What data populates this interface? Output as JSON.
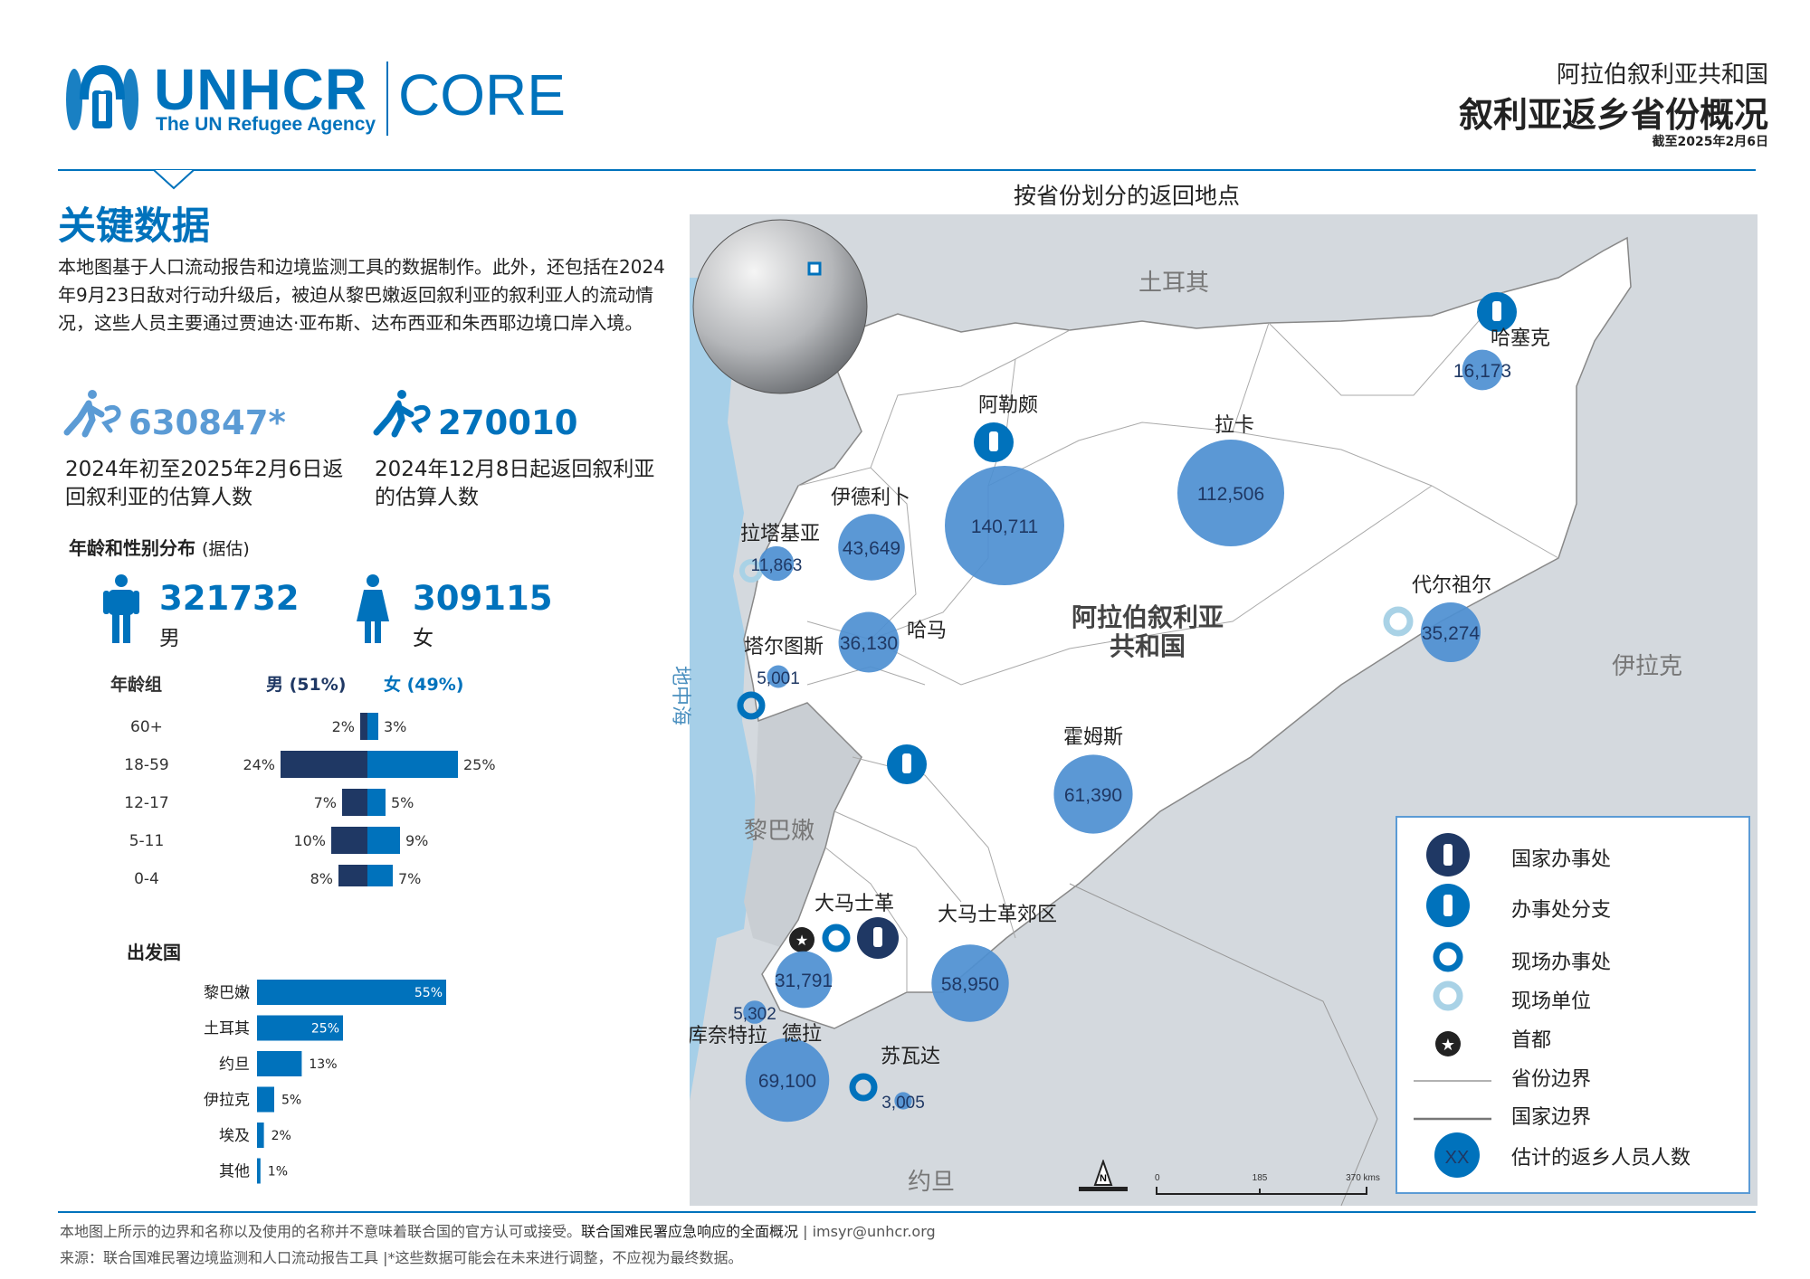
{
  "header": {
    "logo_word": "UNHCR",
    "logo_sub": "The UN Refugee Agency",
    "logo_core": "CORE",
    "country": "阿拉伯叙利亚共和国",
    "title": "叙利亚返乡省份概况",
    "date": "截至2025年2月6日"
  },
  "key_data": {
    "title": "关键数据",
    "intro": "本地图基于人口流动报告和边境监测工具的数据制作。此外，还包括在2024年9月23日敌对行动升级后，被迫从黎巴嫩返回叙利亚的叙利亚人的流动情况，这些人员主要通过贾迪达·亚布斯、达布西亚和朱西耶边境口岸入境。",
    "stat1_value": "630847*",
    "stat1_label": "2024年初至2025年2月6日返回叙利亚的估算人数",
    "stat2_value": "270010",
    "stat2_label": "2024年12月8日起返回叙利亚的估算人数"
  },
  "age_gender": {
    "title": "年龄和性别分布",
    "title_note": "(据估)",
    "male_value": "321732",
    "male_label": "男",
    "female_value": "309115",
    "female_label": "女",
    "age_group_header": "年龄组",
    "male_header": "男 (51%)",
    "female_header": "女 (49%)",
    "rows": [
      {
        "age": "60+",
        "male": 2,
        "female": 3,
        "male_label": "2%",
        "female_label": "3%"
      },
      {
        "age": "18-59",
        "male": 24,
        "female": 25,
        "male_label": "24%",
        "female_label": "25%"
      },
      {
        "age": "12-17",
        "male": 7,
        "female": 5,
        "male_label": "7%",
        "female_label": "5%"
      },
      {
        "age": "5-11",
        "male": 10,
        "female": 9,
        "male_label": "10%",
        "female_label": "9%"
      },
      {
        "age": "0-4",
        "male": 8,
        "female": 7,
        "male_label": "8%",
        "female_label": "7%"
      }
    ]
  },
  "origin": {
    "title": "出发国",
    "rows": [
      {
        "country": "黎巴嫩",
        "value": 55,
        "label": "55%"
      },
      {
        "country": "土耳其",
        "value": 25,
        "label": "25%"
      },
      {
        "country": "约旦",
        "value": 13,
        "label": "13%"
      },
      {
        "country": "伊拉克",
        "value": 5,
        "label": "5%"
      },
      {
        "country": "埃及",
        "value": 2,
        "label": "2%"
      },
      {
        "country": "其他",
        "value": 1,
        "label": "1%"
      }
    ]
  },
  "map": {
    "title": "按省份划分的返回地点",
    "country_label_line1": "阿拉伯叙利亚",
    "country_label_line2": "共和国",
    "neighbors": {
      "turkey": "土耳其",
      "iraq": "伊拉克",
      "lebanon": "黎巴嫩",
      "jordan": "约旦",
      "sea": "地中海"
    },
    "provinces": [
      {
        "name": "阿勒颇",
        "value": 140711,
        "value_label": "140,711"
      },
      {
        "name": "拉卡",
        "value": 112506,
        "value_label": "112,506"
      },
      {
        "name": "哈塞克",
        "value": 16173,
        "value_label": "16,173"
      },
      {
        "name": "伊德利卜",
        "value": 43649,
        "value_label": "43,649"
      },
      {
        "name": "拉塔基亚",
        "value": 11863,
        "value_label": "11,863"
      },
      {
        "name": "哈马",
        "value": 36130,
        "value_label": "36,130"
      },
      {
        "name": "塔尔图斯",
        "value": 5001,
        "value_label": "5,001"
      },
      {
        "name": "代尔祖尔",
        "value": 35274,
        "value_label": "35,274"
      },
      {
        "name": "霍姆斯",
        "value": 61390,
        "value_label": "61,390"
      },
      {
        "name": "大马士革",
        "value": 31791,
        "value_label": "31,791"
      },
      {
        "name": "大马士革郊区",
        "value": 58950,
        "value_label": "58,950"
      },
      {
        "name": "库奈特拉",
        "value": 5302,
        "value_label": "5,302"
      },
      {
        "name": "德拉",
        "value": 69100,
        "value_label": "69,100"
      },
      {
        "name": "苏瓦达",
        "value": 3005,
        "value_label": "3,005"
      }
    ],
    "scale_labels": [
      "0",
      "185",
      "370 kms"
    ],
    "north_label": "N"
  },
  "legend": {
    "country_office": "国家办事处",
    "sub_office": "办事处分支",
    "field_office": "现场办事处",
    "field_unit": "现场单位",
    "capital": "首都",
    "province_border": "省份边界",
    "national_border": "国家边界",
    "returnees": "估计的返乡人员人数",
    "returnees_symbol": "XX"
  },
  "footer": {
    "line1a": "本地图上所示的边界和名称以及使用的名称并不意味着联合国的官方认可或接受。",
    "line1b": "联合国难民署应急响应的全面概况",
    "line1c": " | imsyr@unhcr.org",
    "line2": "来源：联合国难民署边境监测和人口流动报告工具 |*这些数据可能会在未来进行调整，不应视为最终数据。"
  },
  "colors": {
    "brand": "#0072bc",
    "male": "#1f3864",
    "female": "#0072bc",
    "bubble": "#4d8fd1",
    "sea": "#a6cfe8",
    "neighbor": "#d4d9de"
  }
}
